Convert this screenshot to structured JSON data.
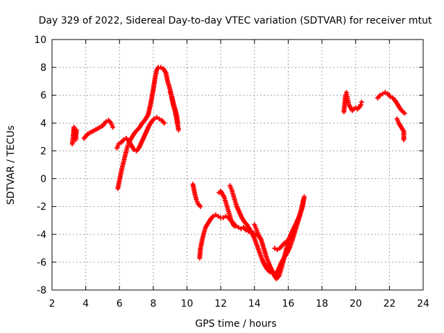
{
  "chart_data": {
    "type": "scatter",
    "title": "Day 329 of 2022, Sidereal Day-to-day VTEC variation (SDTVAR) for receiver mtut",
    "xlabel": "GPS time / hours",
    "ylabel": "SDTVAR / TECUs",
    "xlim": [
      2,
      24
    ],
    "ylim": [
      -8,
      10
    ],
    "xticks": [
      "2",
      "4",
      "6",
      "8",
      "10",
      "12",
      "14",
      "16",
      "18",
      "20",
      "22",
      "24"
    ],
    "yticks": [
      "-8",
      "-6",
      "-4",
      "-2",
      "0",
      "2",
      "4",
      "6",
      "8",
      "10"
    ],
    "grid": true,
    "marker": "+",
    "color": "#ff0000",
    "series": [
      {
        "name": "s1",
        "points": [
          [
            3.2,
            2.5
          ],
          [
            3.25,
            3.0
          ],
          [
            3.3,
            3.7
          ],
          [
            3.35,
            3.3
          ],
          [
            3.4,
            2.8
          ],
          [
            3.45,
            3.5
          ]
        ]
      },
      {
        "name": "s2",
        "points": [
          [
            3.9,
            2.9
          ],
          [
            4.1,
            3.2
          ],
          [
            4.4,
            3.4
          ],
          [
            4.7,
            3.6
          ],
          [
            5.0,
            3.8
          ],
          [
            5.2,
            4.1
          ],
          [
            5.35,
            4.2
          ],
          [
            5.5,
            4.0
          ],
          [
            5.6,
            3.7
          ]
        ]
      },
      {
        "name": "s3",
        "points": [
          [
            5.9,
            -0.7
          ],
          [
            6.0,
            -0.1
          ],
          [
            6.1,
            0.5
          ],
          [
            6.2,
            1.0
          ],
          [
            6.3,
            1.5
          ],
          [
            6.4,
            2.0
          ],
          [
            6.5,
            2.4
          ],
          [
            6.6,
            2.7
          ],
          [
            6.75,
            3.0
          ],
          [
            6.9,
            3.3
          ],
          [
            7.05,
            3.5
          ],
          [
            7.2,
            3.7
          ],
          [
            7.35,
            4.0
          ],
          [
            7.5,
            4.2
          ],
          [
            7.7,
            4.6
          ],
          [
            7.85,
            5.4
          ],
          [
            8.0,
            6.4
          ],
          [
            8.1,
            7.2
          ],
          [
            8.2,
            7.8
          ],
          [
            8.3,
            8.0
          ],
          [
            8.45,
            8.0
          ],
          [
            8.6,
            7.9
          ],
          [
            8.75,
            7.6
          ],
          [
            8.85,
            7.0
          ],
          [
            9.0,
            6.4
          ],
          [
            9.1,
            5.8
          ],
          [
            9.2,
            5.2
          ],
          [
            9.3,
            4.8
          ],
          [
            9.4,
            4.2
          ],
          [
            9.5,
            3.5
          ]
        ]
      },
      {
        "name": "s4",
        "points": [
          [
            5.85,
            2.2
          ],
          [
            5.95,
            2.5
          ],
          [
            6.1,
            2.6
          ],
          [
            6.25,
            2.8
          ],
          [
            6.4,
            2.9
          ],
          [
            6.55,
            2.7
          ],
          [
            6.7,
            2.4
          ],
          [
            6.85,
            2.1
          ],
          [
            7.0,
            2.0
          ],
          [
            7.15,
            2.2
          ],
          [
            7.3,
            2.6
          ],
          [
            7.45,
            3.0
          ],
          [
            7.6,
            3.4
          ],
          [
            7.75,
            3.8
          ],
          [
            7.9,
            4.1
          ],
          [
            8.05,
            4.3
          ],
          [
            8.2,
            4.4
          ],
          [
            8.35,
            4.3
          ],
          [
            8.5,
            4.2
          ],
          [
            8.65,
            4.0
          ]
        ]
      },
      {
        "name": "s5",
        "points": [
          [
            9.0,
            6.2
          ],
          [
            9.1,
            5.9
          ],
          [
            9.2,
            5.4
          ],
          [
            9.3,
            5.0
          ],
          [
            9.4,
            4.5
          ],
          [
            9.45,
            4.0
          ]
        ]
      },
      {
        "name": "s6",
        "points": [
          [
            10.35,
            -0.4
          ],
          [
            10.45,
            -1.0
          ],
          [
            10.55,
            -1.5
          ],
          [
            10.65,
            -1.8
          ],
          [
            10.8,
            -2.0
          ]
        ]
      },
      {
        "name": "s7",
        "points": [
          [
            10.75,
            -5.7
          ],
          [
            10.8,
            -5.0
          ],
          [
            10.9,
            -4.4
          ],
          [
            11.0,
            -3.9
          ],
          [
            11.1,
            -3.5
          ],
          [
            11.25,
            -3.2
          ],
          [
            11.4,
            -2.9
          ],
          [
            11.55,
            -2.7
          ],
          [
            11.7,
            -2.6
          ],
          [
            11.85,
            -2.7
          ],
          [
            12.0,
            -2.8
          ],
          [
            12.15,
            -2.8
          ],
          [
            12.3,
            -2.7
          ],
          [
            12.45,
            -2.8
          ],
          [
            12.6,
            -3.0
          ],
          [
            12.75,
            -3.2
          ],
          [
            12.9,
            -3.4
          ],
          [
            13.05,
            -3.5
          ],
          [
            13.2,
            -3.6
          ],
          [
            13.35,
            -3.5
          ],
          [
            13.5,
            -3.7
          ],
          [
            13.65,
            -3.8
          ],
          [
            13.8,
            -3.9
          ],
          [
            13.95,
            -3.9
          ],
          [
            14.1,
            -4.0
          ],
          [
            14.25,
            -4.1
          ],
          [
            14.4,
            -4.4
          ],
          [
            14.55,
            -5.0
          ],
          [
            14.7,
            -5.6
          ],
          [
            14.85,
            -6.1
          ],
          [
            15.0,
            -6.5
          ],
          [
            15.15,
            -6.9
          ],
          [
            15.3,
            -7.2
          ],
          [
            15.45,
            -7.0
          ],
          [
            15.6,
            -6.4
          ],
          [
            15.75,
            -5.7
          ],
          [
            15.9,
            -5.0
          ],
          [
            16.05,
            -4.4
          ],
          [
            16.2,
            -3.9
          ],
          [
            16.35,
            -3.5
          ],
          [
            16.5,
            -3.2
          ],
          [
            16.65,
            -2.7
          ],
          [
            16.8,
            -2.1
          ],
          [
            16.9,
            -1.5
          ]
        ]
      },
      {
        "name": "s8",
        "points": [
          [
            11.9,
            -1.0
          ],
          [
            12.0,
            -0.9
          ],
          [
            12.1,
            -1.1
          ],
          [
            12.2,
            -1.3
          ],
          [
            12.3,
            -1.7
          ],
          [
            12.4,
            -2.1
          ],
          [
            12.5,
            -2.5
          ],
          [
            12.6,
            -2.9
          ],
          [
            12.7,
            -3.2
          ],
          [
            12.8,
            -3.4
          ]
        ]
      },
      {
        "name": "s9",
        "points": [
          [
            12.55,
            -0.5
          ],
          [
            12.65,
            -0.8
          ],
          [
            12.75,
            -1.2
          ],
          [
            12.85,
            -1.6
          ],
          [
            12.95,
            -2.0
          ],
          [
            13.1,
            -2.4
          ],
          [
            13.25,
            -2.8
          ],
          [
            13.4,
            -3.1
          ],
          [
            13.55,
            -3.3
          ],
          [
            13.7,
            -3.6
          ],
          [
            13.85,
            -3.9
          ],
          [
            14.0,
            -4.3
          ],
          [
            14.15,
            -4.8
          ],
          [
            14.3,
            -5.3
          ],
          [
            14.45,
            -5.8
          ],
          [
            14.6,
            -6.2
          ],
          [
            14.75,
            -6.5
          ],
          [
            14.9,
            -6.7
          ],
          [
            15.05,
            -6.8
          ],
          [
            15.2,
            -6.9
          ],
          [
            15.35,
            -6.7
          ],
          [
            15.5,
            -6.3
          ],
          [
            15.65,
            -5.9
          ],
          [
            15.8,
            -5.6
          ],
          [
            15.95,
            -5.3
          ],
          [
            16.1,
            -4.9
          ],
          [
            16.25,
            -4.4
          ],
          [
            16.4,
            -3.8
          ],
          [
            16.55,
            -3.2
          ],
          [
            16.7,
            -2.6
          ],
          [
            16.85,
            -2.0
          ],
          [
            16.95,
            -1.3
          ]
        ]
      },
      {
        "name": "s10",
        "points": [
          [
            14.0,
            -3.3
          ],
          [
            14.1,
            -3.6
          ],
          [
            14.2,
            -3.9
          ],
          [
            14.3,
            -4.2
          ]
        ]
      },
      {
        "name": "s11",
        "points": [
          [
            15.2,
            -5.0
          ],
          [
            15.35,
            -5.1
          ],
          [
            15.5,
            -5.0
          ],
          [
            15.65,
            -4.8
          ],
          [
            15.8,
            -4.6
          ],
          [
            15.95,
            -4.5
          ],
          [
            16.1,
            -4.2
          ],
          [
            16.25,
            -3.8
          ],
          [
            16.4,
            -3.4
          ],
          [
            16.55,
            -3.0
          ],
          [
            16.7,
            -2.6
          ]
        ]
      },
      {
        "name": "s12",
        "points": [
          [
            19.3,
            4.8
          ],
          [
            19.35,
            5.4
          ],
          [
            19.4,
            6.0
          ],
          [
            19.45,
            6.2
          ],
          [
            19.5,
            5.9
          ],
          [
            19.55,
            5.6
          ],
          [
            19.6,
            5.3
          ],
          [
            19.7,
            5.1
          ],
          [
            19.8,
            4.9
          ],
          [
            19.9,
            5.0
          ],
          [
            20.0,
            5.1
          ],
          [
            20.1,
            5.0
          ],
          [
            20.2,
            5.1
          ],
          [
            20.3,
            5.3
          ],
          [
            20.35,
            5.5
          ]
        ]
      },
      {
        "name": "s13",
        "points": [
          [
            21.3,
            5.8
          ],
          [
            21.45,
            6.0
          ],
          [
            21.6,
            6.1
          ],
          [
            21.75,
            6.2
          ],
          [
            21.9,
            6.1
          ],
          [
            22.05,
            5.9
          ],
          [
            22.2,
            5.8
          ],
          [
            22.35,
            5.6
          ],
          [
            22.5,
            5.3
          ],
          [
            22.65,
            5.0
          ],
          [
            22.8,
            4.8
          ],
          [
            22.9,
            4.7
          ]
        ]
      },
      {
        "name": "s14",
        "points": [
          [
            22.45,
            4.3
          ],
          [
            22.55,
            4.0
          ],
          [
            22.65,
            3.8
          ],
          [
            22.75,
            3.6
          ],
          [
            22.85,
            3.4
          ],
          [
            22.85,
            2.8
          ]
        ]
      }
    ]
  }
}
